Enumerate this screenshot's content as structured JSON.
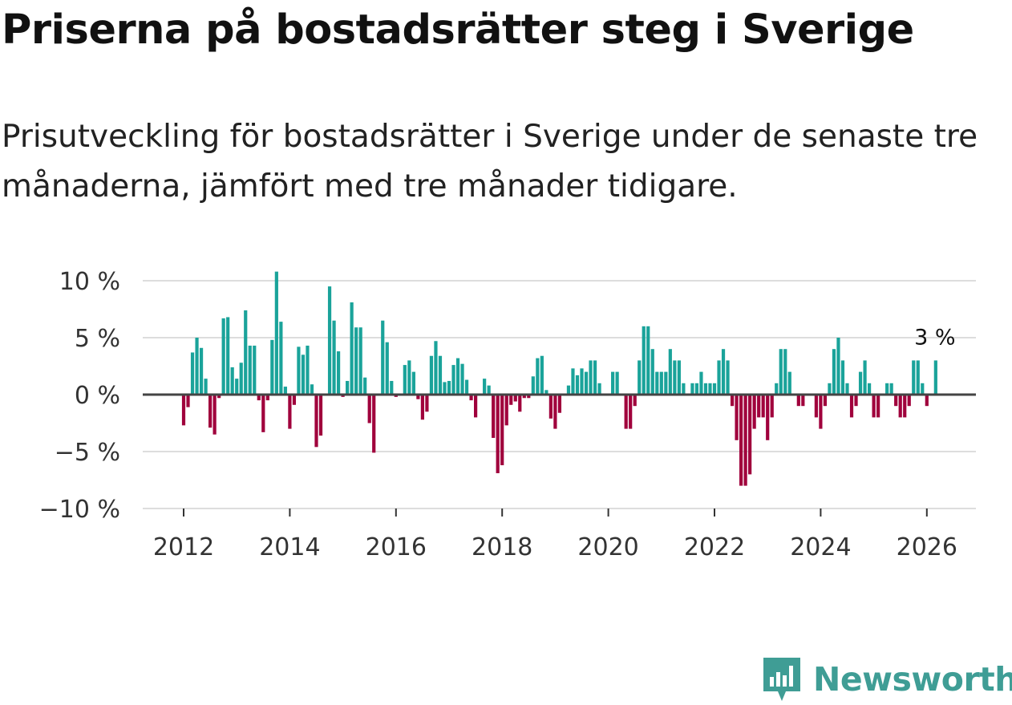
{
  "header": {
    "title": "Priserna på bostadsrätter steg i Sverige",
    "subtitle": "Prisutveckling för bostadsrätter i Sverige under de senaste tre månaderna, jämfört med tre månader tidigare."
  },
  "brand": {
    "name": "Newsworthy",
    "icon": "newsworthy-logo-icon"
  },
  "colors": {
    "positive": "#1aa39a",
    "negative": "#a0003c",
    "grid": "#dddddd",
    "zero_line": "#444444",
    "brand": "#3f9d95"
  },
  "chart_data": {
    "type": "bar",
    "ylim": [
      -10,
      10
    ],
    "y_ticks": [
      10,
      5,
      0,
      -5,
      -10
    ],
    "y_tick_labels": [
      "10 %",
      "5 %",
      "0 %",
      "−5 %",
      "−10 %"
    ],
    "x_ticks": [
      2012,
      2014,
      2016,
      2018,
      2020,
      2022,
      2024,
      2026
    ],
    "x_tick_labels": [
      "2012",
      "2014",
      "2016",
      "2018",
      "2020",
      "2022",
      "2024",
      "2026"
    ],
    "start_year": 2012,
    "start_month": 1,
    "last_value_label": "3 %",
    "values": [
      -2.7,
      -1.1,
      3.7,
      5.0,
      4.1,
      1.4,
      -2.9,
      -3.5,
      -0.3,
      6.7,
      6.8,
      2.4,
      1.4,
      2.8,
      7.4,
      4.3,
      4.3,
      -0.5,
      -3.3,
      -0.5,
      4.8,
      10.8,
      6.4,
      0.7,
      -3.0,
      -0.9,
      4.2,
      3.5,
      4.3,
      0.9,
      -4.6,
      -3.6,
      0.0,
      9.5,
      6.5,
      3.8,
      -0.2,
      1.2,
      8.1,
      5.9,
      5.9,
      1.5,
      -2.5,
      -5.1,
      0.0,
      6.5,
      4.6,
      1.2,
      -0.2,
      0.0,
      2.6,
      3.0,
      2.0,
      -0.4,
      -2.2,
      -1.5,
      3.4,
      4.7,
      3.4,
      1.1,
      1.2,
      2.6,
      3.2,
      2.7,
      1.3,
      -0.5,
      -2.0,
      0.0,
      1.4,
      0.8,
      -3.8,
      -6.9,
      -6.2,
      -2.7,
      -0.9,
      -0.6,
      -1.5,
      -0.3,
      -0.3,
      1.6,
      3.2,
      3.4,
      0.4,
      -2.1,
      -3.0,
      -1.6,
      0.0,
      0.8,
      2.3,
      1.7,
      2.3,
      2.0,
      3.0,
      3.0,
      1.0,
      0.0,
      0.0,
      2.0,
      2.0,
      0.0,
      -3.0,
      -3.0,
      -1.0,
      3.0,
      6.0,
      6.0,
      4.0,
      2.0,
      2.0,
      2.0,
      4.0,
      3.0,
      3.0,
      1.0,
      0.0,
      1.0,
      1.0,
      2.0,
      1.0,
      1.0,
      1.0,
      3.0,
      4.0,
      3.0,
      -1.0,
      -4.0,
      -8.0,
      -8.0,
      -7.0,
      -3.0,
      -2.0,
      -2.0,
      -4.0,
      -2.0,
      1.0,
      4.0,
      4.0,
      2.0,
      0.0,
      -1.0,
      -1.0,
      0.0,
      0.0,
      -2.0,
      -3.0,
      -1.0,
      1.0,
      4.0,
      5.0,
      3.0,
      1.0,
      -2.0,
      -1.0,
      2.0,
      3.0,
      1.0,
      -2.0,
      -2.0,
      0.0,
      1.0,
      1.0,
      -1.0,
      -2.0,
      -2.0,
      -1.0,
      3.0,
      3.0,
      1.0,
      -1.0,
      0.0,
      3.0
    ]
  }
}
